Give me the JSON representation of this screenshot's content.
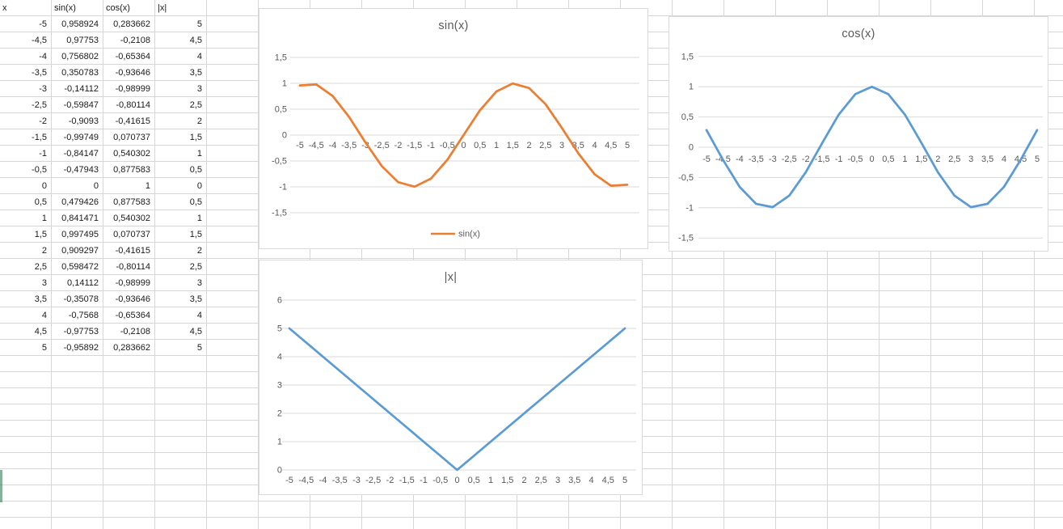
{
  "sheet": {
    "table": {
      "headers": [
        "x",
        "sin(x)",
        "cos(x)",
        "|x|"
      ],
      "rows": [
        [
          "-5",
          "0,958924",
          "0,283662",
          "5"
        ],
        [
          "-4,5",
          "0,97753",
          "-0,2108",
          "4,5"
        ],
        [
          "-4",
          "0,756802",
          "-0,65364",
          "4"
        ],
        [
          "-3,5",
          "0,350783",
          "-0,93646",
          "3,5"
        ],
        [
          "-3",
          "-0,14112",
          "-0,98999",
          "3"
        ],
        [
          "-2,5",
          "-0,59847",
          "-0,80114",
          "2,5"
        ],
        [
          "-2",
          "-0,9093",
          "-0,41615",
          "2"
        ],
        [
          "-1,5",
          "-0,99749",
          "0,070737",
          "1,5"
        ],
        [
          "-1",
          "-0,84147",
          "0,540302",
          "1"
        ],
        [
          "-0,5",
          "-0,47943",
          "0,877583",
          "0,5"
        ],
        [
          "0",
          "0",
          "1",
          "0"
        ],
        [
          "0,5",
          "0,479426",
          "0,877583",
          "0,5"
        ],
        [
          "1",
          "0,841471",
          "0,540302",
          "1"
        ],
        [
          "1,5",
          "0,997495",
          "0,070737",
          "1,5"
        ],
        [
          "2",
          "0,909297",
          "-0,41615",
          "2"
        ],
        [
          "2,5",
          "0,598472",
          "-0,80114",
          "2,5"
        ],
        [
          "3",
          "0,14112",
          "-0,98999",
          "3"
        ],
        [
          "3,5",
          "-0,35078",
          "-0,93646",
          "3,5"
        ],
        [
          "4",
          "-0,7568",
          "-0,65364",
          "4"
        ],
        [
          "4,5",
          "-0,97753",
          "-0,2108",
          "4,5"
        ],
        [
          "5",
          "-0,95892",
          "0,283662",
          "5"
        ]
      ]
    }
  },
  "chart_data": [
    {
      "type": "line",
      "title": "sin(x)",
      "x": [
        -5,
        -4.5,
        -4,
        -3.5,
        -3,
        -2.5,
        -2,
        -1.5,
        -1,
        -0.5,
        0,
        0.5,
        1,
        1.5,
        2,
        2.5,
        3,
        3.5,
        4,
        4.5,
        5
      ],
      "x_tick_labels": [
        "-5",
        "-4,5",
        "-4",
        "-3,5",
        "-3",
        "-2,5",
        "-2",
        "-1,5",
        "-1",
        "-0,5",
        "0",
        "0,5",
        "1",
        "1,5",
        "2",
        "2,5",
        "3",
        "3,5",
        "4",
        "4,5",
        "5"
      ],
      "series": [
        {
          "name": "sin(x)",
          "color": "#ED7D31",
          "values": [
            0.958924,
            0.97753,
            0.756802,
            0.350783,
            -0.14112,
            -0.59847,
            -0.9093,
            -0.99749,
            -0.84147,
            -0.47943,
            0,
            0.479426,
            0.841471,
            0.997495,
            0.909297,
            0.598472,
            0.14112,
            -0.35078,
            -0.7568,
            -0.97753,
            -0.95892
          ]
        }
      ],
      "ylim": [
        -1.5,
        1.5
      ],
      "ystep": 0.5,
      "y_tick_labels": [
        "1,5",
        "1",
        "0,5",
        "0",
        "-0,5",
        "-1",
        "-1,5"
      ],
      "grid": true,
      "legend": {
        "visible": true,
        "position": "bottom",
        "entries": [
          "sin(x)"
        ]
      }
    },
    {
      "type": "line",
      "title": "cos(x)",
      "x": [
        -5,
        -4.5,
        -4,
        -3.5,
        -3,
        -2.5,
        -2,
        -1.5,
        -1,
        -0.5,
        0,
        0.5,
        1,
        1.5,
        2,
        2.5,
        3,
        3.5,
        4,
        4.5,
        5
      ],
      "x_tick_labels": [
        "-5",
        "-4,5",
        "-4",
        "-3,5",
        "-3",
        "-2,5",
        "-2",
        "-1,5",
        "-1",
        "-0,5",
        "0",
        "0,5",
        "1",
        "1,5",
        "2",
        "2,5",
        "3",
        "3,5",
        "4",
        "4,5",
        "5"
      ],
      "series": [
        {
          "name": "cos(x)",
          "color": "#5B9BD5",
          "values": [
            0.283662,
            -0.2108,
            -0.65364,
            -0.93646,
            -0.98999,
            -0.80114,
            -0.41615,
            0.070737,
            0.540302,
            0.877583,
            1,
            0.877583,
            0.540302,
            0.070737,
            -0.41615,
            -0.80114,
            -0.98999,
            -0.93646,
            -0.65364,
            -0.2108,
            0.283662
          ]
        }
      ],
      "ylim": [
        -1.5,
        1.5
      ],
      "ystep": 0.5,
      "y_tick_labels": [
        "1,5",
        "1",
        "0,5",
        "0",
        "-0,5",
        "-1",
        "-1,5"
      ],
      "grid": true,
      "legend": {
        "visible": false
      }
    },
    {
      "type": "line",
      "title": "|x|",
      "x": [
        -5,
        -4.5,
        -4,
        -3.5,
        -3,
        -2.5,
        -2,
        -1.5,
        -1,
        -0.5,
        0,
        0.5,
        1,
        1.5,
        2,
        2.5,
        3,
        3.5,
        4,
        4.5,
        5
      ],
      "x_tick_labels": [
        "-5",
        "-4,5",
        "-4",
        "-3,5",
        "-3",
        "-2,5",
        "-2",
        "-1,5",
        "-1",
        "-0,5",
        "0",
        "0,5",
        "1",
        "1,5",
        "2",
        "2,5",
        "3",
        "3,5",
        "4",
        "4,5",
        "5"
      ],
      "series": [
        {
          "name": "|x|",
          "color": "#5B9BD5",
          "values": [
            5,
            4.5,
            4,
            3.5,
            3,
            2.5,
            2,
            1.5,
            1,
            0.5,
            0,
            0.5,
            1,
            1.5,
            2,
            2.5,
            3,
            3.5,
            4,
            4.5,
            5
          ]
        }
      ],
      "ylim": [
        0,
        6
      ],
      "ystep": 1,
      "y_tick_labels": [
        "6",
        "5",
        "4",
        "3",
        "2",
        "1",
        "0"
      ],
      "grid": true,
      "legend": {
        "visible": false
      }
    }
  ],
  "colors": {
    "series_orange": "#ED7D31",
    "series_blue": "#5B9BD5",
    "chart_text": "#595959",
    "chart_gridline": "#D9D9D9",
    "sheet_gridline": "#D6D6D6",
    "selection_green": "#217346"
  }
}
